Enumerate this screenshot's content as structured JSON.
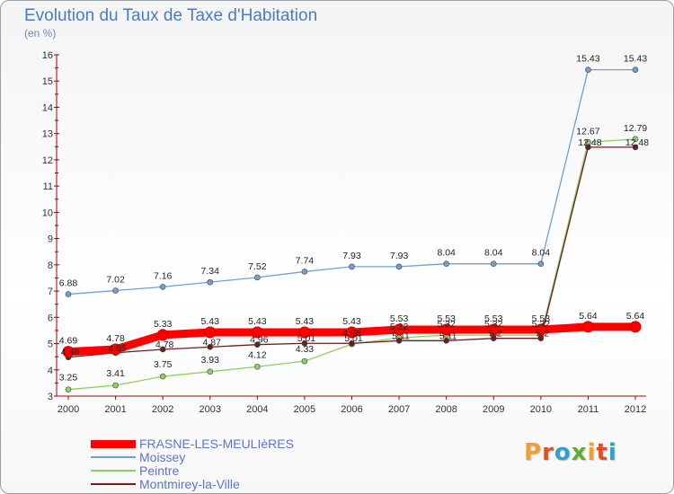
{
  "chart_data": {
    "type": "line",
    "title": "Evolution du Taux de Taxe d'Habitation",
    "ylabel": "(en %)",
    "x": [
      "2000",
      "2001",
      "2002",
      "2003",
      "2004",
      "2005",
      "2006",
      "2007",
      "2008",
      "2009",
      "2010",
      "2011",
      "2012"
    ],
    "ylim": [
      3,
      16
    ],
    "yticks": [
      3,
      4,
      5,
      6,
      7,
      8,
      9,
      10,
      11,
      12,
      13,
      14,
      15,
      16
    ],
    "grid": false,
    "legend_position": "bottom-left",
    "series": [
      {
        "name": "FRASNE-LES-MEULIèRES",
        "color": "#ff0000",
        "values": [
          4.69,
          4.78,
          5.33,
          5.43,
          5.43,
          5.43,
          5.43,
          5.53,
          5.53,
          5.53,
          5.53,
          5.64,
          5.64
        ]
      },
      {
        "name": "Moissey",
        "color": "#6fa0d0",
        "values": [
          6.88,
          7.02,
          7.16,
          7.34,
          7.52,
          7.74,
          7.93,
          7.93,
          8.04,
          8.04,
          8.04,
          15.43,
          15.43
        ]
      },
      {
        "name": "Peintre",
        "color": "#90d060",
        "values": [
          3.25,
          3.41,
          3.75,
          3.93,
          4.12,
          4.33,
          4.98,
          5.22,
          5.32,
          5.32,
          5.32,
          12.67,
          12.79
        ]
      },
      {
        "name": "Montmirey-la-Ville",
        "color": "#6b1e1e",
        "values": [
          4.48,
          4.65,
          4.78,
          4.87,
          4.96,
          5.01,
          5.01,
          5.11,
          5.11,
          5.2,
          5.2,
          12.48,
          12.48
        ]
      }
    ]
  },
  "logo": {
    "letters": [
      "P",
      "r",
      "o",
      "x",
      "i",
      "t",
      "i"
    ],
    "colors": [
      "#f0a030",
      "#e05020",
      "#30a0d0",
      "#60b030",
      "#f0a030",
      "#e05020",
      "#30a0d0"
    ]
  }
}
